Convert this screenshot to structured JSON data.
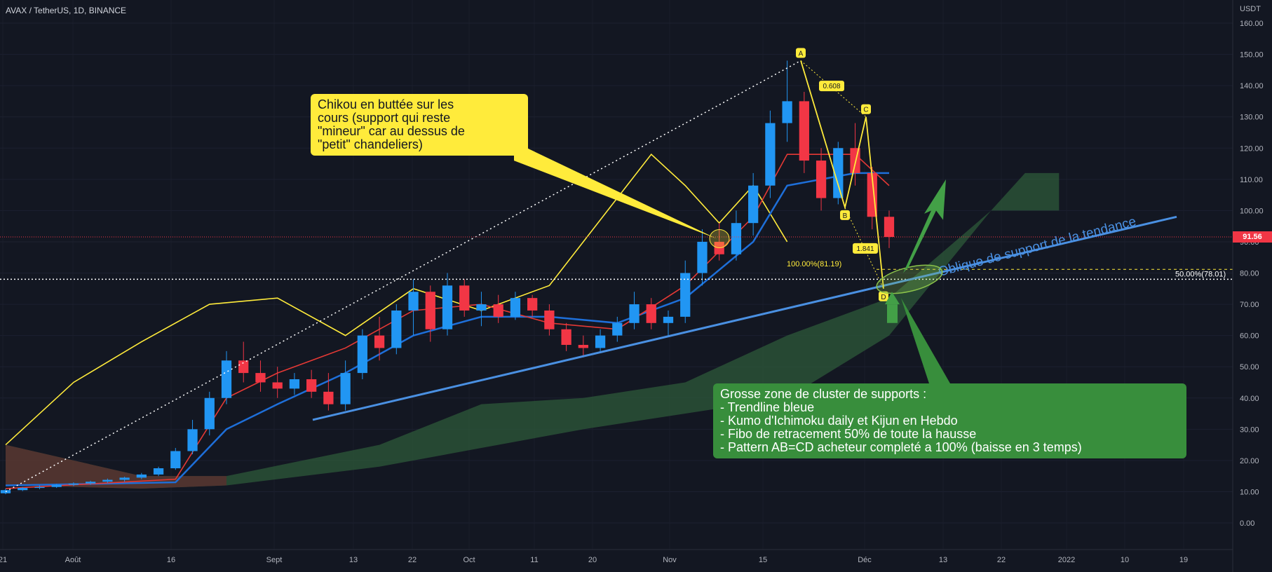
{
  "header": {
    "title": "AVAX / TetherUS, 1D, BINANCE"
  },
  "price_scale": {
    "currency": "USDT",
    "ticks": [
      "160.00",
      "150.00",
      "140.00",
      "130.00",
      "120.00",
      "110.00",
      "100.00",
      "90.00",
      "80.00",
      "70.00",
      "60.00",
      "50.00",
      "40.00",
      "30.00",
      "20.00",
      "10.00",
      "0.00"
    ],
    "last_price": "91.56"
  },
  "time_scale": {
    "labels": [
      "21",
      "Août",
      "16",
      "Sept",
      "13",
      "22",
      "Oct",
      "11",
      "20",
      "Nov",
      "15",
      "Déc",
      "13",
      "22",
      "2022",
      "10",
      "19"
    ]
  },
  "colors": {
    "background": "#131722",
    "up": "#2196f3",
    "down": "#f23645",
    "chikou": "#ffeb3b",
    "kijun": "#1e6fd9",
    "tenkan": "#e53935",
    "kumo_bull": "#2e5a3a",
    "kumo_bear": "#5a2e2e",
    "trendline": "#4a90e2",
    "fib": "#ffeb3b",
    "callout_yellow": "#ffeb3b",
    "callout_green": "#388e3c",
    "arrow_green": "#43a047"
  },
  "annotations": {
    "trendline_label": "Oblique de support de la tendance",
    "fib_100_label": "100.00%(81.19)",
    "fib_50_label": "50.00%(78.01)",
    "harmonic": {
      "A": "A",
      "B": "B",
      "C": "C",
      "D": "D",
      "ratio_bc": "0.608",
      "ratio_cd": "1.841"
    },
    "callout_chikou": [
      "Chikou en buttée sur les",
      "cours (support qui reste",
      "\"mineur\" car au dessus de",
      "\"petit\" chandeliers)"
    ],
    "callout_cluster": [
      "Grosse zone de cluster de supports :",
      "- Trendline bleue",
      "- Kumo d'Ichimoku daily et Kijun en Hebdo",
      "- Fibo de retracement 50% de toute la hausse",
      "- Pattern AB=CD acheteur completé a 100% (baisse en 3 temps)"
    ]
  },
  "chart_data": {
    "type": "candlestick",
    "symbol": "AVAX / TetherUS",
    "interval": "1D",
    "exchange": "BINANCE",
    "ylim": [
      0,
      160
    ],
    "last_price": 91.56,
    "candles": [
      {
        "date": "2021-07-21",
        "o": 9.5,
        "h": 11,
        "l": 9.2,
        "c": 10.5
      },
      {
        "date": "2021-07-24",
        "o": 10.5,
        "h": 11.5,
        "l": 10.2,
        "c": 11.2
      },
      {
        "date": "2021-07-27",
        "o": 11.2,
        "h": 12,
        "l": 10.8,
        "c": 11.5
      },
      {
        "date": "2021-07-30",
        "o": 11.5,
        "h": 12.5,
        "l": 11.2,
        "c": 12.2
      },
      {
        "date": "2021-08-02",
        "o": 12.2,
        "h": 13,
        "l": 11.8,
        "c": 12.6
      },
      {
        "date": "2021-08-05",
        "o": 12.6,
        "h": 13.5,
        "l": 12.2,
        "c": 13.2
      },
      {
        "date": "2021-08-08",
        "o": 13.2,
        "h": 14.2,
        "l": 12.8,
        "c": 13.8
      },
      {
        "date": "2021-08-11",
        "o": 13.8,
        "h": 14.8,
        "l": 13.2,
        "c": 14.5
      },
      {
        "date": "2021-08-14",
        "o": 14.5,
        "h": 16,
        "l": 14,
        "c": 15.5
      },
      {
        "date": "2021-08-17",
        "o": 15.5,
        "h": 18,
        "l": 15,
        "c": 17.5
      },
      {
        "date": "2021-08-20",
        "o": 17.5,
        "h": 24,
        "l": 17,
        "c": 23
      },
      {
        "date": "2021-08-23",
        "o": 23,
        "h": 33,
        "l": 22,
        "c": 30
      },
      {
        "date": "2021-08-26",
        "o": 30,
        "h": 42,
        "l": 28,
        "c": 40
      },
      {
        "date": "2021-08-29",
        "o": 40,
        "h": 55,
        "l": 38,
        "c": 52
      },
      {
        "date": "2021-09-01",
        "o": 52,
        "h": 58,
        "l": 45,
        "c": 48
      },
      {
        "date": "2021-09-04",
        "o": 48,
        "h": 52,
        "l": 42,
        "c": 45
      },
      {
        "date": "2021-09-07",
        "o": 45,
        "h": 50,
        "l": 40,
        "c": 43
      },
      {
        "date": "2021-09-10",
        "o": 43,
        "h": 48,
        "l": 41,
        "c": 46
      },
      {
        "date": "2021-09-13",
        "o": 46,
        "h": 49,
        "l": 40,
        "c": 42
      },
      {
        "date": "2021-09-16",
        "o": 42,
        "h": 48,
        "l": 36,
        "c": 38
      },
      {
        "date": "2021-09-19",
        "o": 38,
        "h": 52,
        "l": 36,
        "c": 48
      },
      {
        "date": "2021-09-22",
        "o": 48,
        "h": 62,
        "l": 46,
        "c": 60
      },
      {
        "date": "2021-09-25",
        "o": 60,
        "h": 66,
        "l": 52,
        "c": 56
      },
      {
        "date": "2021-09-28",
        "o": 56,
        "h": 70,
        "l": 54,
        "c": 68
      },
      {
        "date": "2021-10-01",
        "o": 68,
        "h": 78,
        "l": 60,
        "c": 74
      },
      {
        "date": "2021-10-04",
        "o": 74,
        "h": 76,
        "l": 58,
        "c": 62
      },
      {
        "date": "2021-10-07",
        "o": 62,
        "h": 80,
        "l": 60,
        "c": 76
      },
      {
        "date": "2021-10-10",
        "o": 76,
        "h": 78,
        "l": 66,
        "c": 68
      },
      {
        "date": "2021-10-13",
        "o": 68,
        "h": 74,
        "l": 63,
        "c": 70
      },
      {
        "date": "2021-10-16",
        "o": 70,
        "h": 73,
        "l": 64,
        "c": 66
      },
      {
        "date": "2021-10-19",
        "o": 66,
        "h": 74,
        "l": 65,
        "c": 72
      },
      {
        "date": "2021-10-22",
        "o": 72,
        "h": 73,
        "l": 66,
        "c": 68
      },
      {
        "date": "2021-10-25",
        "o": 68,
        "h": 70,
        "l": 60,
        "c": 62
      },
      {
        "date": "2021-10-28",
        "o": 62,
        "h": 64,
        "l": 55,
        "c": 57
      },
      {
        "date": "2021-10-31",
        "o": 57,
        "h": 60,
        "l": 53,
        "c": 56
      },
      {
        "date": "2021-11-03",
        "o": 56,
        "h": 62,
        "l": 55,
        "c": 60
      },
      {
        "date": "2021-11-06",
        "o": 60,
        "h": 66,
        "l": 58,
        "c": 64
      },
      {
        "date": "2021-11-09",
        "o": 64,
        "h": 74,
        "l": 62,
        "c": 70
      },
      {
        "date": "2021-11-12",
        "o": 70,
        "h": 72,
        "l": 62,
        "c": 64
      },
      {
        "date": "2021-11-15",
        "o": 64,
        "h": 68,
        "l": 60,
        "c": 66
      },
      {
        "date": "2021-11-18",
        "o": 66,
        "h": 84,
        "l": 64,
        "c": 80
      },
      {
        "date": "2021-11-21",
        "o": 80,
        "h": 94,
        "l": 76,
        "c": 90
      },
      {
        "date": "2021-11-24",
        "o": 90,
        "h": 96,
        "l": 84,
        "c": 86
      },
      {
        "date": "2021-11-27",
        "o": 86,
        "h": 100,
        "l": 84,
        "c": 96
      },
      {
        "date": "2021-11-30",
        "o": 96,
        "h": 112,
        "l": 92,
        "c": 108
      },
      {
        "date": "2021-12-03",
        "o": 108,
        "h": 132,
        "l": 104,
        "c": 128
      },
      {
        "date": "2021-12-06",
        "o": 128,
        "h": 148,
        "l": 122,
        "c": 135
      },
      {
        "date": "2021-12-09",
        "o": 135,
        "h": 138,
        "l": 112,
        "c": 116
      },
      {
        "date": "2021-12-12",
        "o": 116,
        "h": 120,
        "l": 100,
        "c": 104
      },
      {
        "date": "2021-12-15",
        "o": 104,
        "h": 122,
        "l": 102,
        "c": 120
      },
      {
        "date": "2021-12-18",
        "o": 120,
        "h": 128,
        "l": 108,
        "c": 112
      },
      {
        "date": "2021-12-21",
        "o": 112,
        "h": 114,
        "l": 94,
        "c": 98
      },
      {
        "date": "2021-12-24",
        "o": 98,
        "h": 100,
        "l": 88,
        "c": 91.56
      }
    ],
    "series": [
      {
        "name": "Chikou",
        "values": [
          [
            0,
            25
          ],
          [
            4,
            45
          ],
          [
            8,
            58
          ],
          [
            12,
            70
          ],
          [
            16,
            72
          ],
          [
            20,
            60
          ],
          [
            24,
            75
          ],
          [
            28,
            68
          ],
          [
            32,
            76
          ],
          [
            36,
            104
          ],
          [
            38,
            118
          ],
          [
            40,
            108
          ],
          [
            42,
            96
          ],
          [
            44,
            108
          ],
          [
            46,
            90
          ]
        ]
      },
      {
        "name": "Kijun",
        "values": [
          [
            0,
            12
          ],
          [
            10,
            13
          ],
          [
            13,
            30
          ],
          [
            16,
            38
          ],
          [
            20,
            48
          ],
          [
            24,
            60
          ],
          [
            28,
            66
          ],
          [
            32,
            66
          ],
          [
            36,
            64
          ],
          [
            40,
            72
          ],
          [
            44,
            90
          ],
          [
            46,
            108
          ],
          [
            50,
            112
          ],
          [
            52,
            112
          ]
        ]
      },
      {
        "name": "Tenkan",
        "values": [
          [
            0,
            11
          ],
          [
            10,
            14
          ],
          [
            13,
            40
          ],
          [
            16,
            48
          ],
          [
            20,
            56
          ],
          [
            24,
            68
          ],
          [
            28,
            70
          ],
          [
            32,
            64
          ],
          [
            36,
            62
          ],
          [
            40,
            76
          ],
          [
            44,
            98
          ],
          [
            46,
            118
          ],
          [
            50,
            118
          ],
          [
            52,
            108
          ]
        ]
      }
    ]
  }
}
